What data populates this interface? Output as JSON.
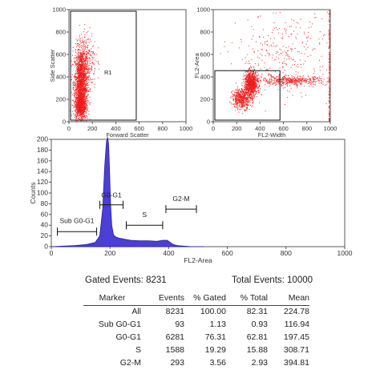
{
  "chart_data": [
    {
      "type": "scatter",
      "xlabel": "Forward Scatter",
      "ylabel": "Side Scatter",
      "xlim": [
        0,
        1000
      ],
      "ylim": [
        0,
        1000
      ],
      "xticks": [
        "0",
        "200",
        "400",
        "600",
        "800",
        "1000"
      ],
      "yticks": [
        "0",
        "200",
        "400",
        "600",
        "800",
        "1000"
      ],
      "gate": {
        "label": "R1",
        "x": [
          0,
          575
        ],
        "y": [
          0,
          1000
        ]
      },
      "clusters": [
        {
          "cx": 100,
          "cy": 340,
          "sx": 28,
          "sy": 160,
          "n": 1700
        },
        {
          "cx": 95,
          "cy": 150,
          "sx": 22,
          "sy": 55,
          "n": 700
        },
        {
          "cx": 150,
          "cy": 550,
          "sx": 40,
          "sy": 130,
          "n": 250
        }
      ],
      "color": "#ee1c1c"
    },
    {
      "type": "scatter",
      "xlabel": "FL2-Width",
      "ylabel": "FL2-Area",
      "xlim": [
        0,
        1000
      ],
      "ylim": [
        0,
        1000
      ],
      "xticks": [
        "0",
        "200",
        "400",
        "600",
        "800",
        "1000"
      ],
      "yticks": [
        "0",
        "200",
        "400",
        "600",
        "800",
        "1000"
      ],
      "gate": {
        "label": "",
        "x": [
          0,
          570
        ],
        "y": [
          0,
          470
        ]
      },
      "clusters": [
        {
          "cx": 320,
          "cy": 340,
          "sx": 28,
          "sy": 55,
          "n": 900
        },
        {
          "cx": 240,
          "cy": 210,
          "sx": 40,
          "sy": 45,
          "n": 500
        },
        {
          "cx": 650,
          "cy": 370,
          "sx": 160,
          "sy": 20,
          "n": 450
        },
        {
          "cx": 600,
          "cy": 600,
          "sx": 200,
          "sy": 180,
          "n": 300
        }
      ],
      "edge_points": {
        "x": 985,
        "n": 200
      },
      "color": "#ee1c1c"
    },
    {
      "type": "area",
      "xlabel": "FL2-Area",
      "ylabel": "Counts",
      "xlim": [
        0,
        1000
      ],
      "ylim": [
        0,
        200
      ],
      "xticks": [
        "0",
        "200",
        "400",
        "600",
        "800",
        "1000"
      ],
      "yticks": [
        "0",
        "20",
        "40",
        "60",
        "80",
        "100",
        "120",
        "140",
        "160",
        "180",
        "200"
      ],
      "x": [
        0,
        40,
        80,
        120,
        150,
        165,
        175,
        182,
        188,
        192,
        195,
        198,
        202,
        206,
        212,
        220,
        230,
        240,
        250,
        270,
        300,
        330,
        360,
        380,
        395,
        405,
        415,
        430,
        450,
        480,
        520
      ],
      "values": [
        0,
        1,
        2,
        4,
        8,
        20,
        70,
        150,
        196,
        204,
        192,
        150,
        80,
        40,
        22,
        18,
        16,
        15,
        14,
        12,
        11,
        11,
        10,
        12,
        12,
        8,
        4,
        2,
        1,
        0,
        0
      ],
      "color": "#4b3fd6",
      "markers": [
        {
          "label": "Sub G0-G1",
          "x": [
            15,
            160
          ],
          "bar_y": 28,
          "label_y": 44
        },
        {
          "label": "G0-G1",
          "x": [
            160,
            250
          ],
          "bar_y": 78,
          "label_y": 92
        },
        {
          "label": "S",
          "x": [
            250,
            385
          ],
          "bar_y": 40,
          "label_y": 55
        },
        {
          "label": "G2-M",
          "x": [
            385,
            500
          ],
          "bar_y": 70,
          "label_y": 85
        }
      ]
    }
  ],
  "summary": {
    "gated_events": "Gated Events: 8231",
    "total_events": "Total Events: 10000"
  },
  "stats_table": {
    "headers": [
      "Marker",
      "Events",
      "% Gated",
      "% Total",
      "Mean"
    ],
    "rows": [
      [
        "All",
        "8231",
        "100.00",
        "82.31",
        "224.78"
      ],
      [
        "Sub G0-G1",
        "93",
        "1.13",
        "0.93",
        "116.94"
      ],
      [
        "G0-G1",
        "6281",
        "76.31",
        "62.81",
        "197.45"
      ],
      [
        "S",
        "1588",
        "19.29",
        "15.88",
        "308.71"
      ],
      [
        "G2-M",
        "293",
        "3.56",
        "2.93",
        "394.81"
      ]
    ]
  }
}
